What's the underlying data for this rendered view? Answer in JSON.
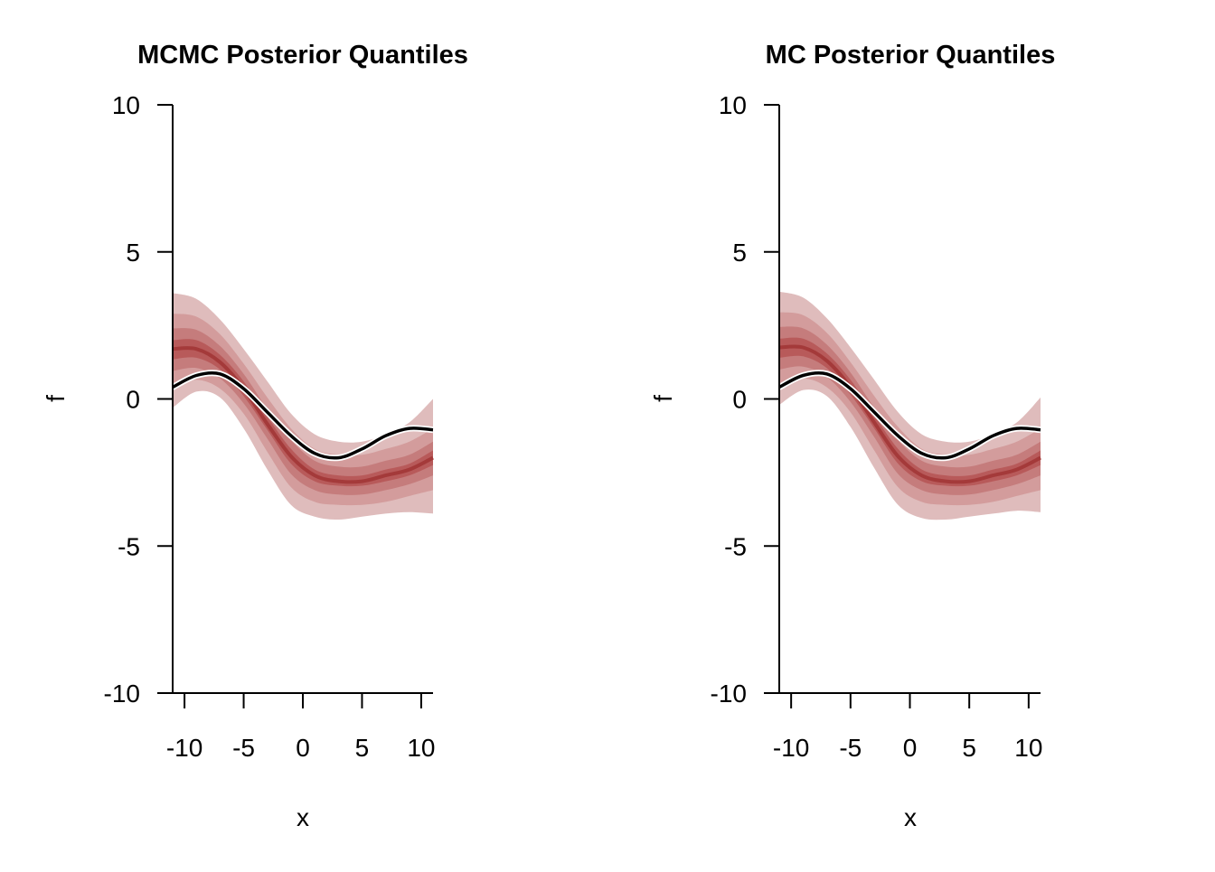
{
  "colors": {
    "background": "#ffffff",
    "axis": "#000000",
    "truth_line": "#000000",
    "truth_halo": "#ffffff",
    "median_line": "#a43a3a",
    "bands": [
      "#dfbcbc",
      "#d39c9c",
      "#c57c7c",
      "#b85a5a"
    ]
  },
  "chart_data": [
    {
      "type": "area",
      "title": "MCMC Posterior Quantiles",
      "xlabel": "x",
      "ylabel": "f",
      "xlim": [
        -11,
        11
      ],
      "ylim": [
        -10,
        10
      ],
      "x_ticks": [
        -10,
        -5,
        0,
        5,
        10
      ],
      "y_ticks": [
        -10,
        -5,
        0,
        5,
        10
      ],
      "x_tick_labels": [
        "-10",
        "-5",
        "0",
        "5",
        "10"
      ],
      "y_tick_labels": [
        "-10",
        "-5",
        "0",
        "5",
        "10"
      ],
      "grid": false,
      "legend": "none",
      "x": [
        -11,
        -9,
        -7,
        -5,
        -3,
        -1,
        1,
        3,
        5,
        7,
        9,
        11
      ],
      "truth": [
        0.4,
        0.8,
        0.85,
        0.35,
        -0.45,
        -1.25,
        -1.85,
        -2.0,
        -1.7,
        -1.25,
        -1.0,
        -1.05
      ],
      "median": [
        1.7,
        1.7,
        1.25,
        0.35,
        -0.85,
        -1.95,
        -2.6,
        -2.8,
        -2.8,
        -2.6,
        -2.4,
        -2.0
      ],
      "bands": [
        {
          "lower": [
            -0.3,
            0.25,
            0.05,
            -1.0,
            -2.4,
            -3.6,
            -4.0,
            -4.1,
            -4.0,
            -3.9,
            -3.85,
            -3.9
          ],
          "upper": [
            3.6,
            3.4,
            2.7,
            1.7,
            0.6,
            -0.5,
            -1.2,
            -1.45,
            -1.45,
            -1.2,
            -0.8,
            0.0
          ]
        },
        {
          "lower": [
            0.4,
            0.65,
            0.35,
            -0.5,
            -1.8,
            -3.0,
            -3.5,
            -3.6,
            -3.6,
            -3.5,
            -3.3,
            -3.1
          ],
          "upper": [
            2.9,
            2.8,
            2.2,
            1.2,
            0.05,
            -1.0,
            -1.7,
            -1.9,
            -1.9,
            -1.7,
            -1.45,
            -1.0
          ]
        },
        {
          "lower": [
            0.95,
            1.05,
            0.7,
            -0.15,
            -1.35,
            -2.55,
            -3.1,
            -3.25,
            -3.25,
            -3.1,
            -2.9,
            -2.6
          ],
          "upper": [
            2.4,
            2.35,
            1.8,
            0.85,
            -0.35,
            -1.4,
            -2.1,
            -2.3,
            -2.3,
            -2.1,
            -1.9,
            -1.45
          ]
        },
        {
          "lower": [
            1.35,
            1.4,
            1.0,
            0.1,
            -1.05,
            -2.2,
            -2.8,
            -2.95,
            -2.95,
            -2.8,
            -2.6,
            -2.25
          ],
          "upper": [
            2.0,
            2.0,
            1.5,
            0.6,
            -0.6,
            -1.7,
            -2.4,
            -2.6,
            -2.6,
            -2.4,
            -2.2,
            -1.75
          ]
        }
      ]
    },
    {
      "type": "area",
      "title": "MC Posterior Quantiles",
      "xlabel": "x",
      "ylabel": "f",
      "xlim": [
        -11,
        11
      ],
      "ylim": [
        -10,
        10
      ],
      "x_ticks": [
        -10,
        -5,
        0,
        5,
        10
      ],
      "y_ticks": [
        -10,
        -5,
        0,
        5,
        10
      ],
      "x_tick_labels": [
        "-10",
        "-5",
        "0",
        "5",
        "10"
      ],
      "y_tick_labels": [
        "-10",
        "-5",
        "0",
        "5",
        "10"
      ],
      "grid": false,
      "legend": "none",
      "x": [
        -11,
        -9,
        -7,
        -5,
        -3,
        -1,
        1,
        3,
        5,
        7,
        9,
        11
      ],
      "truth": [
        0.4,
        0.8,
        0.85,
        0.35,
        -0.45,
        -1.25,
        -1.85,
        -2.0,
        -1.7,
        -1.25,
        -1.0,
        -1.05
      ],
      "median": [
        1.75,
        1.75,
        1.3,
        0.4,
        -0.8,
        -1.95,
        -2.6,
        -2.8,
        -2.8,
        -2.6,
        -2.4,
        -2.0
      ],
      "bands": [
        {
          "lower": [
            -0.2,
            0.3,
            0.1,
            -0.95,
            -2.35,
            -3.6,
            -4.05,
            -4.1,
            -4.0,
            -3.9,
            -3.8,
            -3.85
          ],
          "upper": [
            3.65,
            3.45,
            2.75,
            1.75,
            0.65,
            -0.45,
            -1.2,
            -1.45,
            -1.45,
            -1.2,
            -0.8,
            0.05
          ]
        },
        {
          "lower": [
            0.45,
            0.7,
            0.4,
            -0.45,
            -1.75,
            -3.0,
            -3.5,
            -3.6,
            -3.6,
            -3.5,
            -3.3,
            -3.1
          ],
          "upper": [
            2.95,
            2.85,
            2.25,
            1.25,
            0.1,
            -0.95,
            -1.7,
            -1.9,
            -1.9,
            -1.7,
            -1.45,
            -1.0
          ]
        },
        {
          "lower": [
            1.0,
            1.1,
            0.75,
            -0.1,
            -1.3,
            -2.55,
            -3.1,
            -3.25,
            -3.25,
            -3.1,
            -2.9,
            -2.6
          ],
          "upper": [
            2.45,
            2.4,
            1.85,
            0.9,
            -0.3,
            -1.4,
            -2.1,
            -2.3,
            -2.3,
            -2.1,
            -1.9,
            -1.45
          ]
        },
        {
          "lower": [
            1.4,
            1.45,
            1.05,
            0.15,
            -1.0,
            -2.2,
            -2.8,
            -2.95,
            -2.95,
            -2.8,
            -2.6,
            -2.25
          ],
          "upper": [
            2.05,
            2.05,
            1.55,
            0.65,
            -0.55,
            -1.7,
            -2.4,
            -2.6,
            -2.6,
            -2.4,
            -2.2,
            -1.75
          ]
        }
      ]
    }
  ]
}
